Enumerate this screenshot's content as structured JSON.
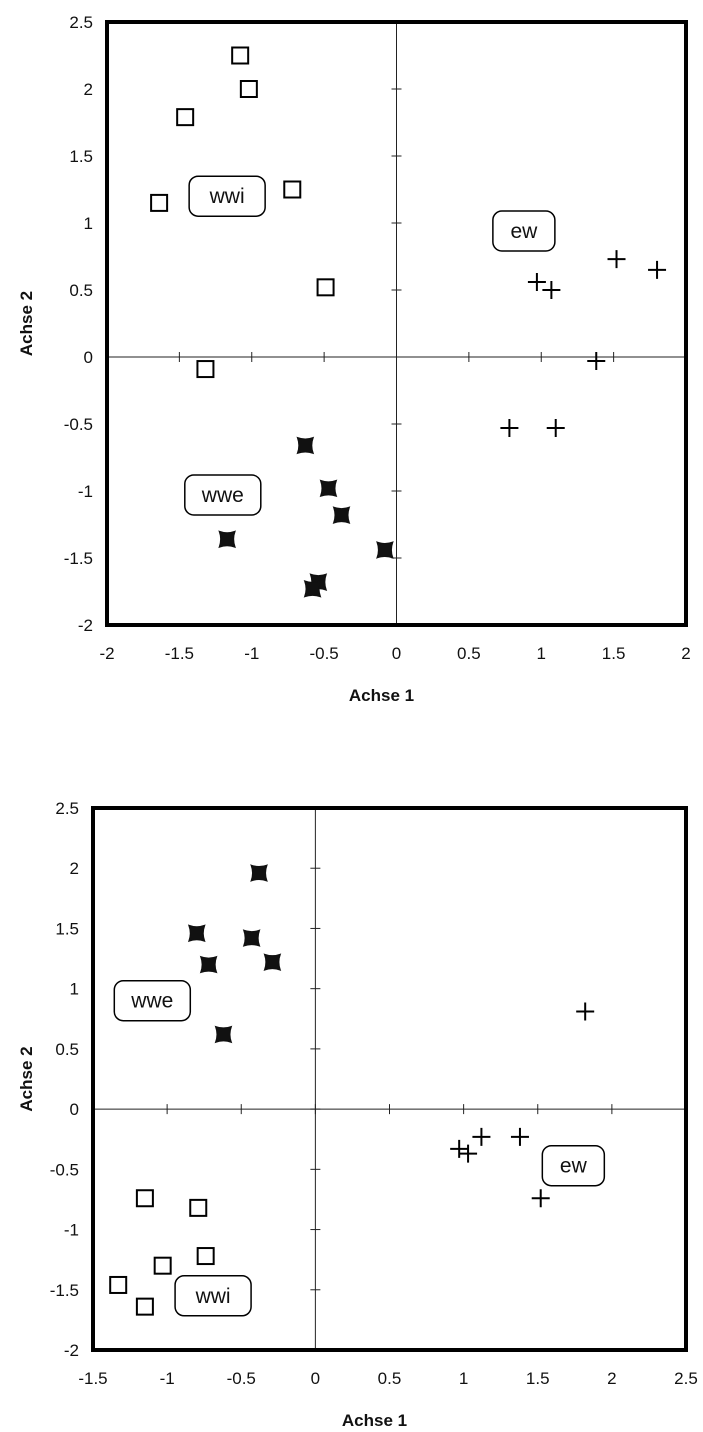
{
  "chart_data": [
    {
      "type": "scatter",
      "xlabel": "Achse 1",
      "ylabel": "Achse 2",
      "xlim": [
        -2,
        2
      ],
      "ylim": [
        -2,
        2.5
      ],
      "xticks": [
        -2,
        -1.5,
        -1,
        -0.5,
        0,
        0.5,
        1,
        1.5,
        2
      ],
      "yticks": [
        -2,
        -1.5,
        -1,
        -0.5,
        0,
        0.5,
        1,
        1.5,
        2,
        2.5
      ],
      "xtick_labels": [
        "-2",
        "-1.5",
        "-1",
        "-0.5",
        "0",
        "0.5",
        "1",
        "1.5",
        "2"
      ],
      "ytick_labels": [
        "-2",
        "-1.5",
        "-1",
        "-0.5",
        "0",
        "0.5",
        "1",
        "1.5",
        "2",
        "2.5"
      ],
      "series": [
        {
          "name": "wwi",
          "marker": "open-square",
          "x": [
            -1.08,
            -1.02,
            -1.46,
            -1.64,
            -0.72,
            -0.49,
            -1.32
          ],
          "y": [
            2.25,
            2.0,
            1.79,
            1.15,
            1.25,
            0.52,
            -0.09
          ]
        },
        {
          "name": "wwe",
          "marker": "filled-square",
          "x": [
            -0.63,
            -0.47,
            -0.38,
            -1.17,
            -0.08,
            -0.54,
            -0.58
          ],
          "y": [
            -0.66,
            -0.98,
            -1.18,
            -1.36,
            -1.44,
            -1.68,
            -1.73
          ]
        },
        {
          "name": "ew",
          "marker": "plus",
          "x": [
            0.97,
            1.07,
            1.52,
            1.8,
            1.38,
            0.78,
            1.1
          ],
          "y": [
            0.56,
            0.5,
            0.73,
            0.65,
            -0.03,
            -0.53,
            -0.53
          ]
        }
      ],
      "annotations": [
        {
          "text": "wwi",
          "x": -1.17,
          "y": 1.2
        },
        {
          "text": "wwe",
          "x": -1.2,
          "y": -1.03
        },
        {
          "text": "ew",
          "x": 0.88,
          "y": 0.94
        }
      ]
    },
    {
      "type": "scatter",
      "xlabel": "Achse 1",
      "ylabel": "Achse 2",
      "xlim": [
        -1.5,
        2.5
      ],
      "ylim": [
        -2,
        2.5
      ],
      "xticks": [
        -1.5,
        -1,
        -0.5,
        0,
        0.5,
        1,
        1.5,
        2,
        2.5
      ],
      "yticks": [
        -2,
        -1.5,
        -1,
        -0.5,
        0,
        0.5,
        1,
        1.5,
        2,
        2.5
      ],
      "xtick_labels": [
        "-1.5",
        "-1",
        "-0.5",
        "0",
        "0.5",
        "1",
        "1.5",
        "2",
        "2.5"
      ],
      "ytick_labels": [
        "-2",
        "-1.5",
        "-1",
        "-0.5",
        "0",
        "0.5",
        "1",
        "1.5",
        "2",
        "2.5"
      ],
      "series": [
        {
          "name": "wwe",
          "marker": "filled-square",
          "x": [
            -0.38,
            -0.8,
            -0.43,
            -0.72,
            -0.29,
            -0.62
          ],
          "y": [
            1.96,
            1.46,
            1.42,
            1.2,
            1.22,
            0.62
          ]
        },
        {
          "name": "wwi",
          "marker": "open-square",
          "x": [
            -1.15,
            -0.79,
            -1.03,
            -0.74,
            -1.33,
            -1.15
          ],
          "y": [
            -0.74,
            -0.82,
            -1.3,
            -1.22,
            -1.46,
            -1.64
          ]
        },
        {
          "name": "ew",
          "marker": "plus",
          "x": [
            1.82,
            0.97,
            1.03,
            1.12,
            1.38,
            1.52
          ],
          "y": [
            0.81,
            -0.33,
            -0.37,
            -0.23,
            -0.23,
            -0.74
          ]
        }
      ],
      "annotations": [
        {
          "text": "wwe",
          "x": -1.1,
          "y": 0.9
        },
        {
          "text": "wwi",
          "x": -0.69,
          "y": -1.55
        },
        {
          "text": "ew",
          "x": 1.74,
          "y": -0.47
        }
      ]
    }
  ]
}
